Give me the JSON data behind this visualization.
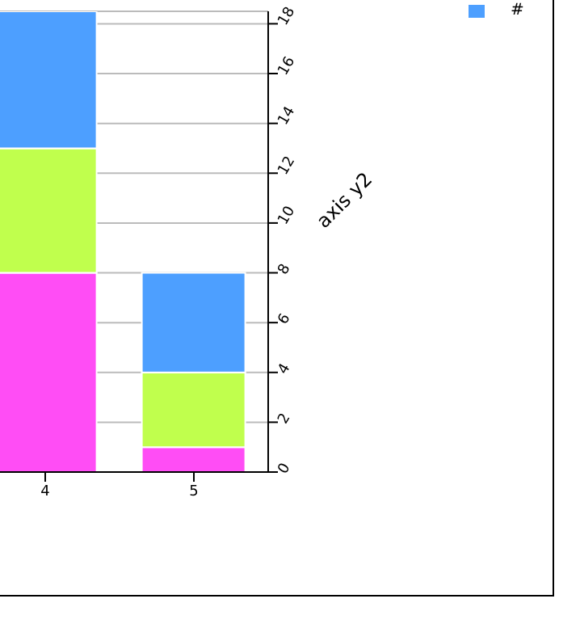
{
  "chart_data": {
    "type": "bar",
    "stacked": true,
    "categories": [
      "4",
      "5"
    ],
    "series": [
      {
        "color": "#ff4df5",
        "values": [
          8,
          1
        ],
        "axis": "y2"
      },
      {
        "color": "#c0ff4d",
        "values": [
          5,
          3
        ],
        "axis": "y2"
      },
      {
        "name": "#",
        "color": "#4d9fff",
        "values": [
          5.5,
          4
        ],
        "axis": "y2"
      }
    ],
    "y2label": "axis y2",
    "y2lim": [
      0,
      18.5
    ],
    "y2ticks": [
      0,
      2,
      4,
      6,
      8,
      10,
      12,
      14,
      16,
      18
    ],
    "grid": "y",
    "legend": "top right"
  }
}
